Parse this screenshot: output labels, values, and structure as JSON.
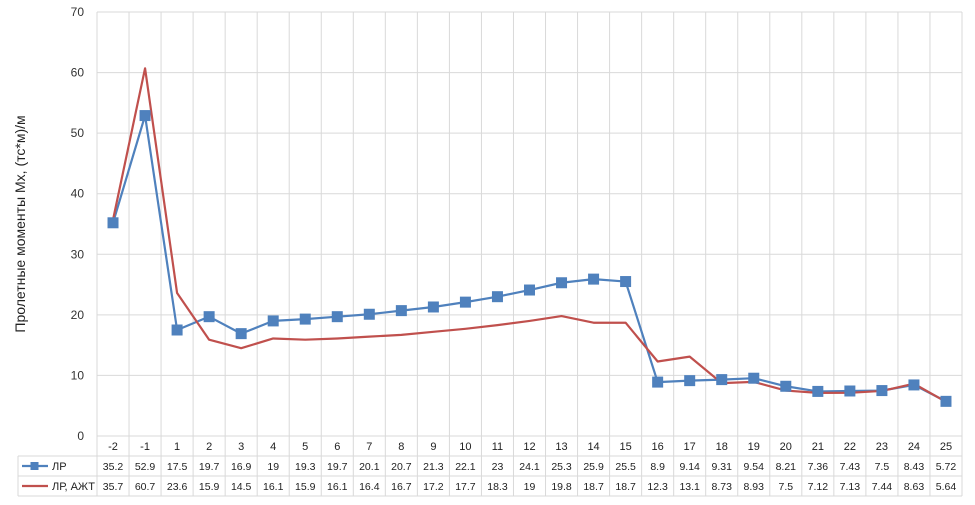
{
  "chart_data": {
    "type": "line",
    "title": "",
    "xlabel": "",
    "ylabel": "Пролетные моменты Mx, (тс*м)/м",
    "ylim": [
      0,
      70
    ],
    "yticks": [
      0,
      10,
      20,
      30,
      40,
      50,
      60,
      70
    ],
    "grid": true,
    "legend": "data-table-left",
    "categories": [
      "-2",
      "-1",
      "1",
      "2",
      "3",
      "4",
      "5",
      "6",
      "7",
      "8",
      "9",
      "10",
      "11",
      "12",
      "13",
      "14",
      "15",
      "16",
      "17",
      "18",
      "19",
      "20",
      "21",
      "22",
      "23",
      "24",
      "25"
    ],
    "series": [
      {
        "name": "ЛР",
        "color": "#4f81bd",
        "marker": "square",
        "values": [
          35.2,
          52.9,
          17.5,
          19.7,
          16.9,
          19,
          19.3,
          19.7,
          20.1,
          20.7,
          21.3,
          22.1,
          23,
          24.1,
          25.3,
          25.9,
          25.5,
          8.9,
          9.14,
          9.31,
          9.54,
          8.21,
          7.36,
          7.43,
          7.5,
          8.43,
          5.72
        ],
        "labels": [
          "35.2",
          "52.9",
          "17.5",
          "19.7",
          "16.9",
          "19",
          "19.3",
          "19.7",
          "20.1",
          "20.7",
          "21.3",
          "22.1",
          "23",
          "24.1",
          "25.3",
          "25.9",
          "25.5",
          "8.9",
          "9.14",
          "9.31",
          "9.54",
          "8.21",
          "7.36",
          "7.43",
          "7.5",
          "8.43",
          "5.72"
        ]
      },
      {
        "name": "ЛР, АЖТ",
        "color": "#c0504d",
        "marker": "none",
        "values": [
          35.7,
          60.7,
          23.6,
          15.9,
          14.5,
          16.1,
          15.9,
          16.1,
          16.4,
          16.7,
          17.2,
          17.7,
          18.3,
          19,
          19.8,
          18.7,
          18.7,
          12.3,
          13.1,
          8.73,
          8.93,
          7.5,
          7.12,
          7.13,
          7.44,
          8.63,
          5.64
        ],
        "labels": [
          "35.7",
          "60.7",
          "23.6",
          "15.9",
          "14.5",
          "16.1",
          "15.9",
          "16.1",
          "16.4",
          "16.7",
          "17.2",
          "17.7",
          "18.3",
          "19",
          "19.8",
          "18.7",
          "18.7",
          "12.3",
          "13.1",
          "8.73",
          "8.93",
          "7.5",
          "7.12",
          "7.13",
          "7.44",
          "8.63",
          "5.64"
        ]
      }
    ]
  }
}
